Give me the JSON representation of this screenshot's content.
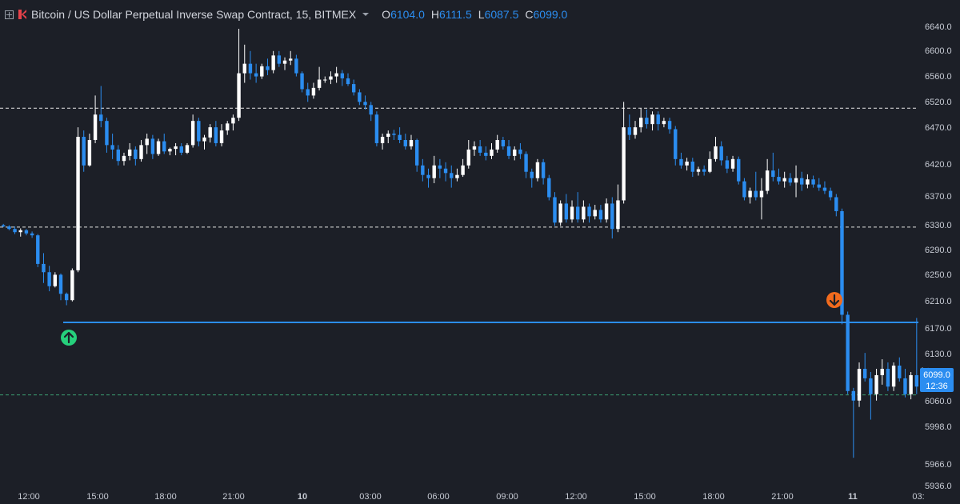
{
  "header": {
    "symbol_title": "Bitcoin / US Dollar Perpetual Inverse Swap Contract, 15, BITMEX",
    "ohlc": [
      {
        "key": "O",
        "value": "6104.0"
      },
      {
        "key": "H",
        "value": "6111.5"
      },
      {
        "key": "L",
        "value": "6087.5"
      },
      {
        "key": "C",
        "value": "6099.0"
      }
    ]
  },
  "colors": {
    "background": "#1c1f27",
    "up_candle": "#ffffff",
    "down_candle": "#2b8df0",
    "axis_text": "#c7cbd4",
    "support_line": "#2b8df0",
    "buy_marker": "#26d07c",
    "sell_marker": "#f26b1d",
    "dashed_white": "#e6e6e6",
    "dashed_green": "#3d9f73"
  },
  "price_axis": {
    "ticks": [
      "6640.0",
      "6600.0",
      "6560.0",
      "6520.0",
      "6470.0",
      "6420.0",
      "6370.0",
      "6330.0",
      "6290.0",
      "6250.0",
      "6210.0",
      "6170.0",
      "6130.0",
      "6099.0",
      "6060.0",
      "5998.0",
      "5966.0",
      "5936.0"
    ],
    "current_price": "6099.0",
    "countdown": "12:36"
  },
  "time_axis": {
    "labels": [
      "12:00",
      "15:00",
      "18:00",
      "21:00",
      "10",
      "03:00",
      "06:00",
      "09:00",
      "12:00",
      "15:00",
      "18:00",
      "21:00",
      "11",
      "03:"
    ]
  },
  "chart_data": {
    "type": "candlestick",
    "title": "Bitcoin / US Dollar Perpetual Inverse Swap Contract, 15, BITMEX",
    "interval": "15",
    "ylim": [
      5930,
      6650
    ],
    "grid": false,
    "horizontal_levels": [
      {
        "price": 6520,
        "style": "dashed",
        "color": "#e6e6e6"
      },
      {
        "price": 6333,
        "style": "dashed",
        "color": "#e6e6e6"
      },
      {
        "price": 6069,
        "style": "dashed",
        "color": "#3d9f73"
      },
      {
        "price": 6183,
        "style": "solid",
        "color": "#2b8df0",
        "from_time": "13:30",
        "to_day": "11"
      }
    ],
    "markers": [
      {
        "type": "buy-arrow",
        "time": "13:30",
        "price": 6183
      },
      {
        "type": "sell-arrow",
        "time": "23:45",
        "price": 6183
      }
    ],
    "candles": [
      [
        6336,
        6338,
        6333,
        6334
      ],
      [
        6334,
        6336,
        6328,
        6330
      ],
      [
        6330,
        6334,
        6322,
        6325
      ],
      [
        6325,
        6331,
        6318,
        6328
      ],
      [
        6328,
        6330,
        6320,
        6323
      ],
      [
        6323,
        6326,
        6316,
        6320
      ],
      [
        6320,
        6322,
        6270,
        6275
      ],
      [
        6275,
        6292,
        6245,
        6262
      ],
      [
        6262,
        6272,
        6232,
        6240
      ],
      [
        6240,
        6262,
        6238,
        6258
      ],
      [
        6258,
        6260,
        6218,
        6228
      ],
      [
        6228,
        6230,
        6210,
        6218
      ],
      [
        6218,
        6268,
        6216,
        6265
      ],
      [
        6265,
        6490,
        6262,
        6475
      ],
      [
        6475,
        6485,
        6420,
        6430
      ],
      [
        6430,
        6480,
        6428,
        6470
      ],
      [
        6470,
        6540,
        6465,
        6510
      ],
      [
        6510,
        6555,
        6490,
        6500
      ],
      [
        6500,
        6505,
        6450,
        6462
      ],
      [
        6462,
        6480,
        6440,
        6455
      ],
      [
        6455,
        6462,
        6430,
        6437
      ],
      [
        6437,
        6450,
        6430,
        6445
      ],
      [
        6445,
        6465,
        6438,
        6455
      ],
      [
        6455,
        6460,
        6430,
        6440
      ],
      [
        6440,
        6470,
        6436,
        6462
      ],
      [
        6462,
        6480,
        6448,
        6472
      ],
      [
        6472,
        6478,
        6440,
        6448
      ],
      [
        6448,
        6472,
        6445,
        6468
      ],
      [
        6468,
        6480,
        6448,
        6452
      ],
      [
        6452,
        6458,
        6446,
        6456
      ],
      [
        6456,
        6465,
        6446,
        6460
      ],
      [
        6460,
        6465,
        6446,
        6450
      ],
      [
        6450,
        6465,
        6448,
        6462
      ],
      [
        6462,
        6510,
        6458,
        6500
      ],
      [
        6500,
        6505,
        6460,
        6468
      ],
      [
        6468,
        6478,
        6455,
        6474
      ],
      [
        6474,
        6495,
        6466,
        6490
      ],
      [
        6490,
        6500,
        6460,
        6465
      ],
      [
        6465,
        6495,
        6460,
        6485
      ],
      [
        6485,
        6500,
        6478,
        6496
      ],
      [
        6496,
        6510,
        6485,
        6505
      ],
      [
        6505,
        6645,
        6500,
        6575
      ],
      [
        6575,
        6620,
        6560,
        6590
      ],
      [
        6590,
        6610,
        6565,
        6575
      ],
      [
        6575,
        6590,
        6560,
        6570
      ],
      [
        6570,
        6590,
        6566,
        6586
      ],
      [
        6586,
        6598,
        6572,
        6580
      ],
      [
        6580,
        6610,
        6575,
        6603
      ],
      [
        6603,
        6610,
        6585,
        6590
      ],
      [
        6590,
        6600,
        6580,
        6595
      ],
      [
        6595,
        6610,
        6588,
        6598
      ],
      [
        6598,
        6604,
        6570,
        6575
      ],
      [
        6575,
        6578,
        6545,
        6550
      ],
      [
        6550,
        6560,
        6530,
        6540
      ],
      [
        6540,
        6560,
        6535,
        6552
      ],
      [
        6552,
        6585,
        6548,
        6565
      ],
      [
        6565,
        6570,
        6560,
        6565
      ],
      [
        6565,
        6578,
        6558,
        6570
      ],
      [
        6570,
        6585,
        6560,
        6575
      ],
      [
        6575,
        6580,
        6555,
        6567
      ],
      [
        6567,
        6575,
        6555,
        6558
      ],
      [
        6558,
        6565,
        6540,
        6545
      ],
      [
        6545,
        6550,
        6525,
        6530
      ],
      [
        6530,
        6540,
        6518,
        6525
      ],
      [
        6525,
        6530,
        6500,
        6510
      ],
      [
        6510,
        6515,
        6460,
        6465
      ],
      [
        6465,
        6480,
        6455,
        6475
      ],
      [
        6475,
        6485,
        6465,
        6480
      ],
      [
        6480,
        6486,
        6470,
        6478
      ],
      [
        6478,
        6490,
        6465,
        6470
      ],
      [
        6470,
        6480,
        6455,
        6460
      ],
      [
        6460,
        6478,
        6455,
        6470
      ],
      [
        6470,
        6472,
        6420,
        6430
      ],
      [
        6430,
        6440,
        6405,
        6415
      ],
      [
        6415,
        6425,
        6395,
        6410
      ],
      [
        6410,
        6445,
        6402,
        6430
      ],
      [
        6430,
        6440,
        6410,
        6425
      ],
      [
        6425,
        6435,
        6405,
        6418
      ],
      [
        6418,
        6430,
        6395,
        6410
      ],
      [
        6410,
        6425,
        6405,
        6415
      ],
      [
        6415,
        6440,
        6412,
        6430
      ],
      [
        6430,
        6470,
        6425,
        6455
      ],
      [
        6455,
        6468,
        6445,
        6460
      ],
      [
        6460,
        6470,
        6445,
        6450
      ],
      [
        6450,
        6460,
        6438,
        6445
      ],
      [
        6445,
        6465,
        6440,
        6455
      ],
      [
        6455,
        6478,
        6450,
        6470
      ],
      [
        6470,
        6475,
        6455,
        6460
      ],
      [
        6460,
        6470,
        6440,
        6445
      ],
      [
        6445,
        6460,
        6438,
        6455
      ],
      [
        6455,
        6465,
        6440,
        6448
      ],
      [
        6448,
        6452,
        6410,
        6420
      ],
      [
        6420,
        6425,
        6395,
        6410
      ],
      [
        6410,
        6440,
        6405,
        6435
      ],
      [
        6435,
        6440,
        6400,
        6410
      ],
      [
        6410,
        6415,
        6375,
        6380
      ],
      [
        6380,
        6388,
        6335,
        6340
      ],
      [
        6340,
        6375,
        6335,
        6370
      ],
      [
        6370,
        6385,
        6340,
        6345
      ],
      [
        6345,
        6375,
        6340,
        6365
      ],
      [
        6365,
        6388,
        6340,
        6345
      ],
      [
        6345,
        6375,
        6340,
        6365
      ],
      [
        6365,
        6370,
        6340,
        6350
      ],
      [
        6350,
        6368,
        6345,
        6360
      ],
      [
        6360,
        6368,
        6340,
        6345
      ],
      [
        6345,
        6378,
        6340,
        6370
      ],
      [
        6370,
        6380,
        6315,
        6330
      ],
      [
        6330,
        6400,
        6325,
        6375
      ],
      [
        6375,
        6530,
        6370,
        6490
      ],
      [
        6490,
        6510,
        6470,
        6478
      ],
      [
        6478,
        6500,
        6472,
        6490
      ],
      [
        6490,
        6520,
        6482,
        6505
      ],
      [
        6505,
        6518,
        6488,
        6495
      ],
      [
        6495,
        6515,
        6485,
        6510
      ],
      [
        6510,
        6515,
        6485,
        6495
      ],
      [
        6495,
        6505,
        6490,
        6500
      ],
      [
        6500,
        6505,
        6480,
        6487
      ],
      [
        6487,
        6492,
        6430,
        6440
      ],
      [
        6440,
        6450,
        6425,
        6430
      ],
      [
        6430,
        6442,
        6422,
        6436
      ],
      [
        6436,
        6442,
        6412,
        6420
      ],
      [
        6420,
        6428,
        6414,
        6424
      ],
      [
        6424,
        6430,
        6414,
        6420
      ],
      [
        6420,
        6452,
        6418,
        6440
      ],
      [
        6440,
        6475,
        6436,
        6460
      ],
      [
        6460,
        6468,
        6430,
        6438
      ],
      [
        6438,
        6445,
        6418,
        6425
      ],
      [
        6425,
        6445,
        6420,
        6440
      ],
      [
        6440,
        6444,
        6400,
        6405
      ],
      [
        6405,
        6410,
        6375,
        6380
      ],
      [
        6380,
        6395,
        6370,
        6390
      ],
      [
        6390,
        6420,
        6375,
        6380
      ],
      [
        6380,
        6410,
        6345,
        6390
      ],
      [
        6390,
        6440,
        6385,
        6422
      ],
      [
        6422,
        6450,
        6405,
        6412
      ],
      [
        6412,
        6425,
        6400,
        6405
      ],
      [
        6405,
        6420,
        6395,
        6410
      ],
      [
        6410,
        6418,
        6398,
        6403
      ],
      [
        6403,
        6430,
        6380,
        6410
      ],
      [
        6410,
        6420,
        6390,
        6400
      ],
      [
        6400,
        6416,
        6394,
        6408
      ],
      [
        6408,
        6414,
        6395,
        6400
      ],
      [
        6400,
        6410,
        6390,
        6395
      ],
      [
        6395,
        6405,
        6385,
        6390
      ],
      [
        6390,
        6395,
        6375,
        6380
      ],
      [
        6380,
        6385,
        6350,
        6358
      ],
      [
        6358,
        6362,
        6180,
        6195
      ],
      [
        6195,
        6200,
        6070,
        6075
      ],
      [
        6075,
        6080,
        5970,
        6060
      ],
      [
        6060,
        6120,
        6050,
        6110
      ],
      [
        6110,
        6135,
        6090,
        6095
      ],
      [
        6095,
        6105,
        6030,
        6070
      ],
      [
        6070,
        6110,
        6060,
        6100
      ],
      [
        6100,
        6125,
        6085,
        6110
      ],
      [
        6110,
        6120,
        6075,
        6082
      ],
      [
        6082,
        6120,
        6075,
        6115
      ],
      [
        6115,
        6128,
        6090,
        6095
      ],
      [
        6095,
        6110,
        6065,
        6070
      ],
      [
        6070,
        6105,
        6062,
        6100
      ],
      [
        6100,
        6190,
        6070,
        6082
      ],
      [
        6082,
        6112,
        6080,
        6104
      ],
      [
        6104,
        6111.5,
        6087.5,
        6099
      ]
    ]
  }
}
